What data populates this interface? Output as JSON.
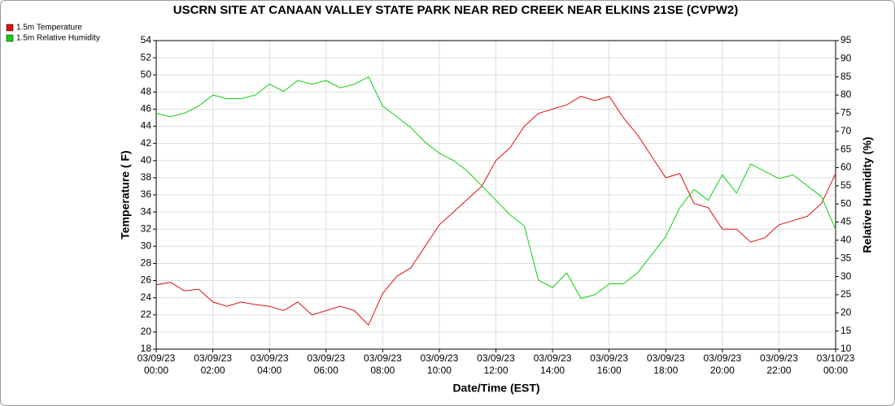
{
  "chart_data": {
    "type": "line",
    "title": "USCRN SITE AT CANAAN VALLEY STATE PARK NEAR RED CREEK NEAR ELKINS 21SE (CVPW2)",
    "x_label": "Date/Time (EST)",
    "y_label": "Temperature ( F)",
    "y2_label": "Relative Humidity (%)",
    "x": [
      "03/09/23 00:00",
      "03/09/23 00:30",
      "03/09/23 01:00",
      "03/09/23 01:30",
      "03/09/23 02:00",
      "03/09/23 02:30",
      "03/09/23 03:00",
      "03/09/23 03:30",
      "03/09/23 04:00",
      "03/09/23 04:30",
      "03/09/23 05:00",
      "03/09/23 05:30",
      "03/09/23 06:00",
      "03/09/23 06:30",
      "03/09/23 07:00",
      "03/09/23 07:30",
      "03/09/23 08:00",
      "03/09/23 08:30",
      "03/09/23 09:00",
      "03/09/23 09:30",
      "03/09/23 10:00",
      "03/09/23 10:30",
      "03/09/23 11:00",
      "03/09/23 11:30",
      "03/09/23 12:00",
      "03/09/23 12:30",
      "03/09/23 13:00",
      "03/09/23 13:30",
      "03/09/23 14:00",
      "03/09/23 14:30",
      "03/09/23 15:00",
      "03/09/23 15:30",
      "03/09/23 16:00",
      "03/09/23 16:30",
      "03/09/23 17:00",
      "03/09/23 17:30",
      "03/09/23 18:00",
      "03/09/23 18:30",
      "03/09/23 19:00",
      "03/09/23 19:30",
      "03/09/23 20:00",
      "03/09/23 20:30",
      "03/09/23 21:00",
      "03/09/23 21:30",
      "03/09/23 22:00",
      "03/09/23 22:30",
      "03/09/23 23:00",
      "03/09/23 23:30",
      "03/10/23 00:00"
    ],
    "series": [
      {
        "name": "1.5m Temperature",
        "color": "#e01010",
        "values": [
          25.5,
          25.8,
          24.8,
          25.0,
          23.5,
          23.0,
          23.5,
          23.2,
          23.0,
          22.5,
          23.5,
          22.0,
          22.5,
          23.0,
          22.5,
          20.8,
          24.5,
          26.5,
          27.5,
          30.0,
          32.5,
          34.0,
          35.5,
          37.0,
          40.0,
          41.5,
          44.0,
          45.5,
          46.0,
          46.5,
          47.5,
          47.0,
          47.5,
          45.0,
          43.0,
          40.5,
          38.0,
          38.5,
          35.0,
          34.5,
          32.0,
          32.0,
          30.5,
          31.0,
          32.5,
          33.0,
          33.5,
          35.0,
          38.5
        ]
      },
      {
        "name": "1.5m Relative Humidity",
        "color": "#10d010",
        "axis": "y2",
        "values": [
          75,
          74,
          75,
          77,
          80,
          79,
          79,
          80,
          83,
          81,
          84,
          83,
          84,
          82,
          83,
          85,
          77,
          74,
          71,
          67,
          64,
          62,
          59,
          55,
          51,
          47,
          44,
          29,
          27,
          31,
          24,
          25,
          28,
          28,
          31,
          36,
          41,
          49,
          54,
          51,
          58,
          53,
          61,
          59,
          57,
          58,
          55,
          52,
          43
        ]
      }
    ],
    "xlim": [
      "03/09/23 00:00",
      "03/10/23 00:00"
    ],
    "xticks": [
      "03/09/23 00:00",
      "03/09/23 02:00",
      "03/09/23 04:00",
      "03/09/23 06:00",
      "03/09/23 08:00",
      "03/09/23 10:00",
      "03/09/23 12:00",
      "03/09/23 14:00",
      "03/09/23 16:00",
      "03/09/23 18:00",
      "03/09/23 20:00",
      "03/09/23 22:00",
      "03/10/23 00:00"
    ],
    "ylim": [
      18,
      54
    ],
    "yticks": [
      18,
      20,
      22,
      24,
      26,
      28,
      30,
      32,
      34,
      36,
      38,
      40,
      42,
      44,
      46,
      48,
      50,
      52,
      54
    ],
    "y2lim": [
      10,
      95
    ],
    "y2ticks": [
      10,
      15,
      20,
      25,
      30,
      35,
      40,
      45,
      50,
      55,
      60,
      65,
      70,
      75,
      80,
      85,
      90,
      95
    ],
    "grid": true
  }
}
